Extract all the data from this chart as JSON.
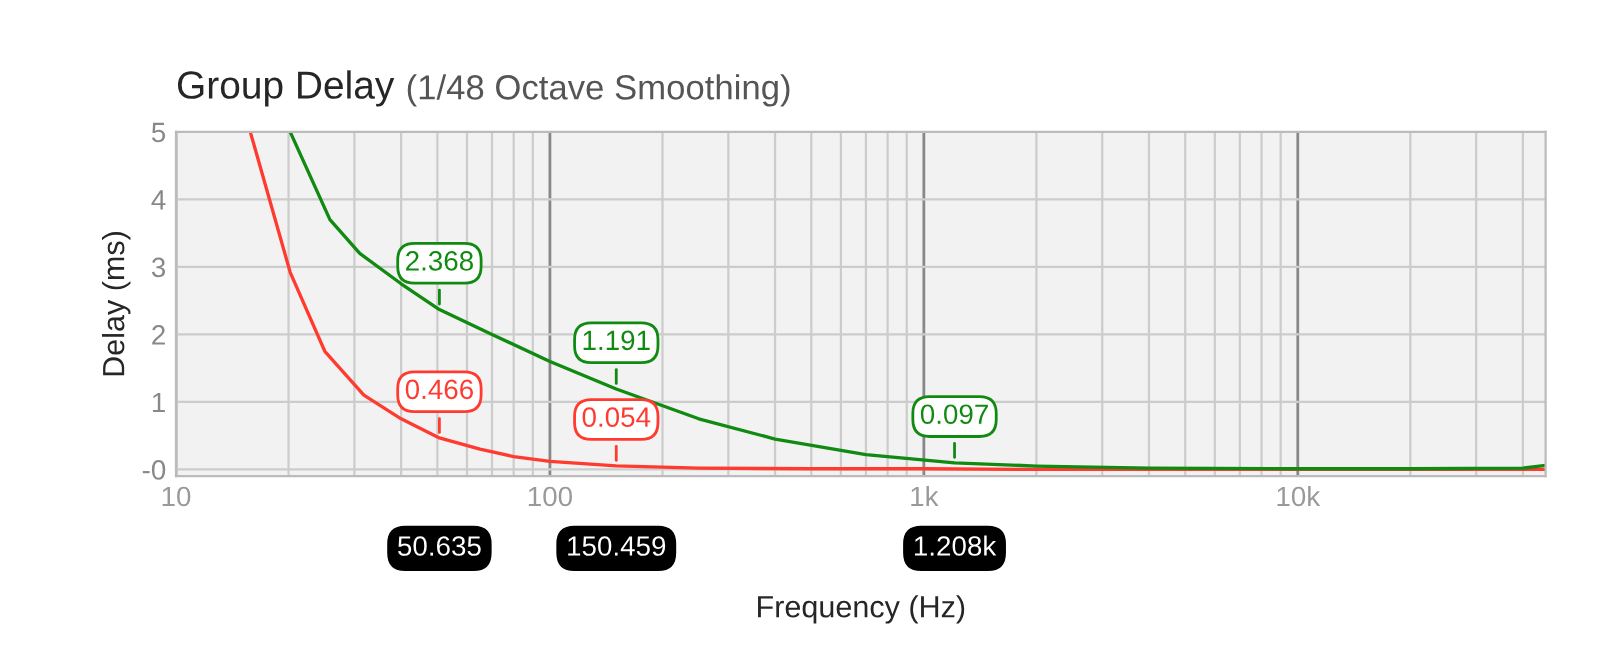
{
  "chart_data": {
    "type": "line",
    "title": "Group Delay",
    "subtitle": "(1/48 Octave Smoothing)",
    "xlabel": "Frequency (Hz)",
    "ylabel": "Delay (ms)",
    "log": "x",
    "xlim": [
      10,
      46000
    ],
    "xticks": [
      10,
      100,
      {
        "value": 1000,
        "label": "1k"
      },
      {
        "value": 10000,
        "label": "10k"
      }
    ],
    "ylim": [
      -0.1,
      5
    ],
    "yticks": [
      {
        "value": 0,
        "label": "-0"
      },
      1,
      2,
      3,
      4,
      5
    ],
    "grid": true,
    "series": [
      {
        "color": "#ff3b30",
        "x": [
          15.8,
          20.2,
          25,
          31.8,
          40,
          50.635,
          65,
          80,
          100,
          150.459,
          250,
          500,
          1000,
          2000,
          5000,
          10000,
          20000,
          46000
        ],
        "values": [
          5,
          2.92,
          1.75,
          1.1,
          0.75,
          0.466,
          0.3,
          0.19,
          0.12,
          0.054,
          0.02,
          0.01,
          0.01,
          0,
          0,
          0,
          0,
          0
        ],
        "value_labels": [
          null,
          null,
          null,
          null,
          null,
          "0.466",
          null,
          null,
          null,
          "0.054",
          null,
          null,
          null,
          null,
          null,
          null,
          null,
          null
        ]
      },
      {
        "color": "#118a11",
        "x": [
          20.2,
          25.8,
          31,
          40,
          50.635,
          70,
          100,
          150.459,
          250,
          400,
          700,
          1208,
          2000,
          4000,
          10000,
          20000,
          40000,
          46000
        ],
        "values": [
          5,
          3.7,
          3.2,
          2.75,
          2.368,
          2.0,
          1.6,
          1.191,
          0.75,
          0.45,
          0.22,
          0.097,
          0.05,
          0.02,
          0.01,
          0.01,
          0.02,
          0.06
        ],
        "value_labels": [
          null,
          null,
          null,
          null,
          "2.368",
          null,
          null,
          "1.191",
          null,
          null,
          null,
          "0.097",
          null,
          null,
          null,
          null,
          null,
          null
        ]
      }
    ],
    "annotations": [
      "50.635",
      "150.459",
      "1.208k"
    ]
  }
}
